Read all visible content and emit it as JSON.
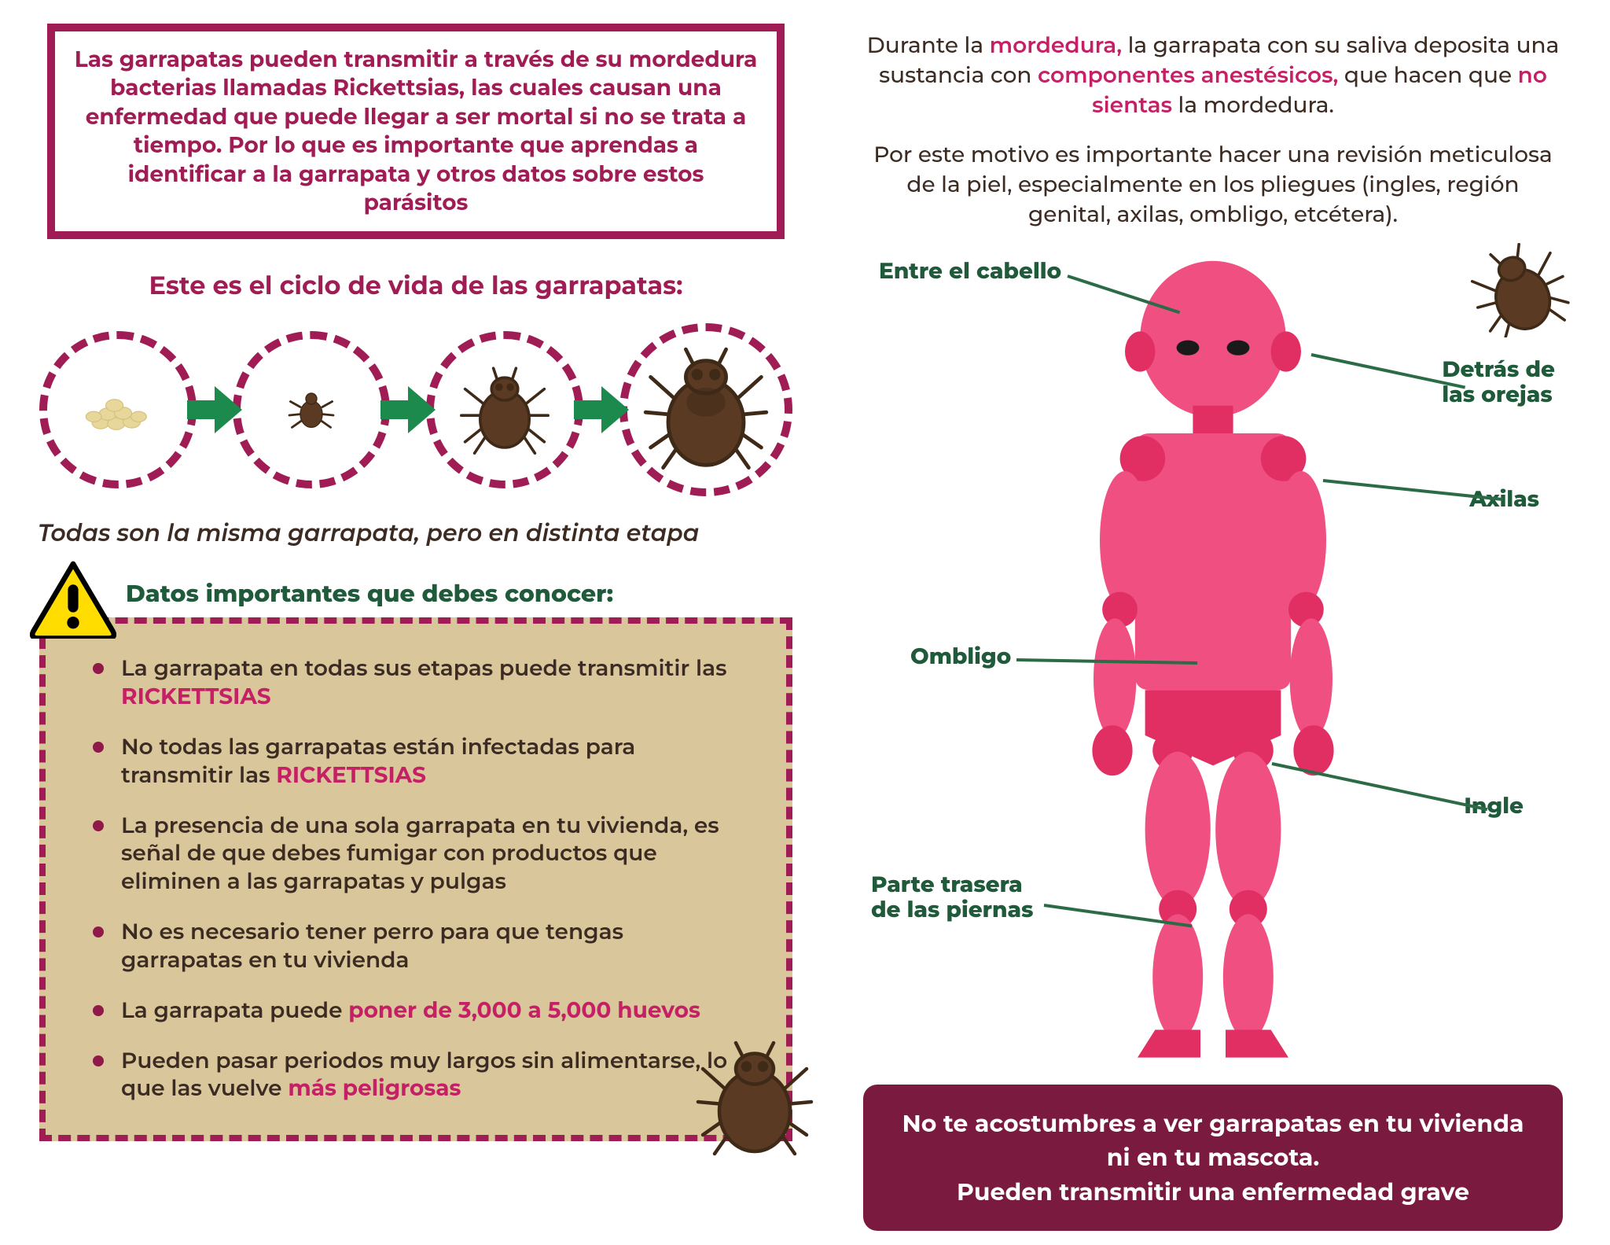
{
  "colors": {
    "maroon": "#a01c54",
    "maroon_dark": "#7a1a3f",
    "darkgreen": "#1f5a3a",
    "green_arrow": "#1b8a4c",
    "text_dark": "#3b2b22",
    "facts_bg": "#d9c79b",
    "facts_bullet": "#8f1a4a",
    "highlight": "#c52066",
    "body_pink": "#ef4f81",
    "body_pink_dark": "#e12f64",
    "warn_yellow": "#ffdd00",
    "tick_body": "#5a3a23",
    "tick_dark": "#3f2a18",
    "egg": "#e8d79a",
    "egg_shadow": "#d4c07a",
    "line_green": "#2b6b46"
  },
  "intro": "Las garrapatas pueden transmitir a través de su mordedura bacterias llamadas Rickettsias, las cuales causan una enfermedad que puede llegar a ser mortal si no se trata a tiempo. Por lo que es importante que aprendas a identificar a la garrapata y otros datos sobre estos parásitos",
  "cycle_title": "Este es el ciclo de vida de las garrapatas:",
  "cycle_note": "Todas son la misma garrapata, pero en distinta etapa",
  "facts_title": "Datos importantes que debes conocer:",
  "facts": [
    {
      "pre": "La garrapata en todas sus etapas puede transmitir las ",
      "hl": "RICKETTSIAS",
      "post": ""
    },
    {
      "pre": "No todas las garrapatas están infectadas para transmitir las ",
      "hl": "RICKETTSIAS",
      "post": ""
    },
    {
      "pre": "La presencia de una sola garrapata en tu vivienda, es señal de que debes fumigar con productos que eliminen a las garrapatas y pulgas",
      "hl": "",
      "post": ""
    },
    {
      "pre": "No es necesario tener perro para que tengas garrapatas en tu vivienda",
      "hl": "",
      "post": ""
    },
    {
      "pre": "La garrapata puede ",
      "hl": "poner de 3,000 a 5,000 huevos",
      "post": ""
    },
    {
      "pre": "Pueden pasar periodos muy largos sin alimentarse, lo que las vuelve ",
      "hl": "más peligrosas",
      "post": ""
    }
  ],
  "right_p1_a": "Durante la ",
  "right_p1_hl1": "mordedura,",
  "right_p1_b": " la garrapata con su saliva deposita una sustancia con ",
  "right_p1_hl2": "componentes anestésicos,",
  "right_p1_c": " que hacen que ",
  "right_p1_hl3": "no sientas",
  "right_p1_d": " la mordedura.",
  "right_p2": "Por este motivo es importante hacer una revisión meticulosa de la piel, especialmente en los pliegues (ingles, región genital, axilas, ombligo, etcétera).",
  "body_labels": {
    "hair": "Entre el cabello",
    "ears": "Detrás de\nlas orejas",
    "armpits": "Axilas",
    "navel": "Ombligo",
    "groin": "Ingle",
    "legs": "Parte trasera\nde las piernas"
  },
  "warning": "No te acostumbres a ver garrapatas en tu vivienda ni en tu mascota.\nPueden transmitir una enfermedad grave"
}
